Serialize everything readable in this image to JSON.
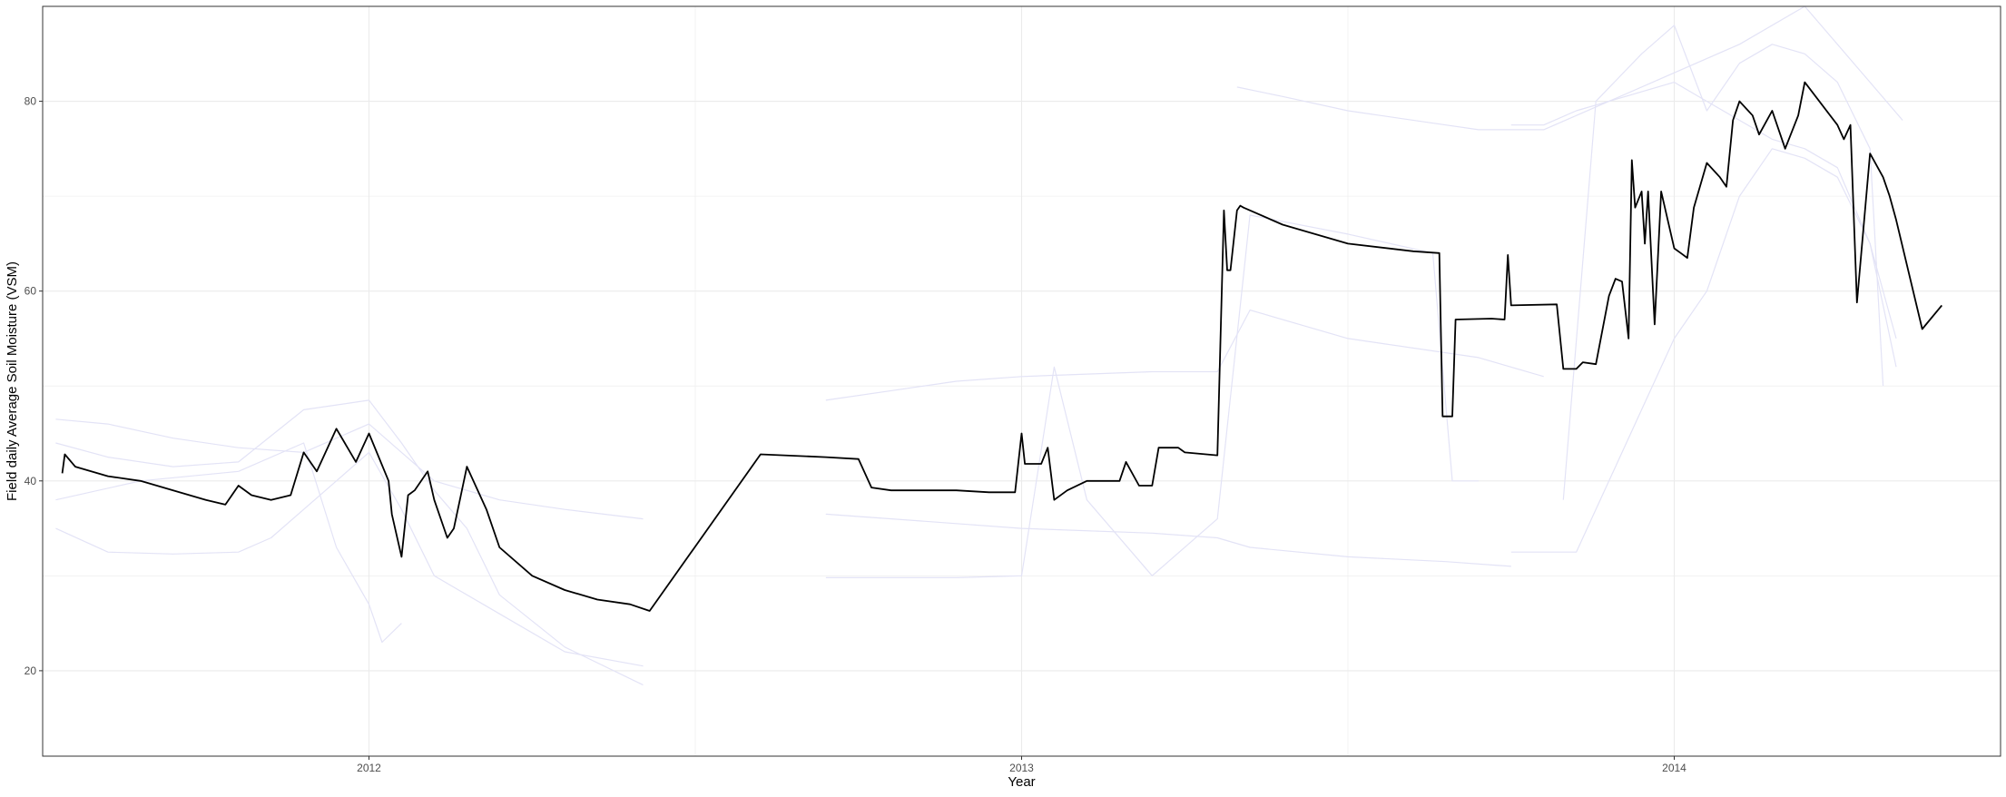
{
  "chart_data": {
    "type": "line",
    "title": "",
    "xlabel": "Year",
    "ylabel": "Field daily Average Soil Moisture (VSM)",
    "xlim": [
      2011.5,
      2014.5
    ],
    "ylim": [
      11,
      90
    ],
    "x_ticks": [
      2012,
      2013,
      2014
    ],
    "x_tick_labels": [
      "2012",
      "2013",
      "2014"
    ],
    "y_ticks": [
      20,
      40,
      60,
      80
    ],
    "y_tick_labels": [
      "20",
      "40",
      "60",
      "80"
    ],
    "grid": true,
    "legend": "none",
    "colors": {
      "field_average": "#000000",
      "sensors": "#e3e3f6",
      "grid": "#ebebeb",
      "panel_border": "#333333"
    },
    "series": [
      {
        "role": "field_average",
        "x": [
          2011.53,
          2011.534,
          2011.55,
          2011.6,
          2011.65,
          2011.7,
          2011.75,
          2011.78,
          2011.8,
          2011.82,
          2011.85,
          2011.88,
          2011.9,
          2011.92,
          2011.95,
          2011.98,
          2012.0,
          2012.03,
          2012.035,
          2012.05,
          2012.06,
          2012.07,
          2012.09,
          2012.1,
          2012.12,
          2012.13,
          2012.15,
          2012.18,
          2012.2,
          2012.25,
          2012.3,
          2012.35,
          2012.4,
          2012.43,
          2012.6,
          2012.7,
          2012.75,
          2012.77,
          2012.8,
          2012.85,
          2012.9,
          2012.95,
          2012.99,
          2013.0,
          2013.005,
          2013.03,
          2013.04,
          2013.05,
          2013.07,
          2013.1,
          2013.15,
          2013.16,
          2013.18,
          2013.2,
          2013.21,
          2013.24,
          2013.25,
          2013.3,
          2013.31,
          2013.315,
          2013.32,
          2013.33,
          2013.335,
          2013.34,
          2013.4,
          2013.5,
          2013.6,
          2013.64,
          2013.645,
          2013.66,
          2013.665,
          2013.72,
          2013.74,
          2013.745,
          2013.75,
          2013.82,
          2013.83,
          2013.85,
          2013.86,
          2013.88,
          2013.9,
          2013.91,
          2013.92,
          2013.93,
          2013.935,
          2013.94,
          2013.95,
          2013.955,
          2013.96,
          2013.97,
          2013.98,
          2014.0,
          2014.01,
          2014.02,
          2014.03,
          2014.05,
          2014.07,
          2014.08,
          2014.09,
          2014.1,
          2014.12,
          2014.13,
          2014.15,
          2014.17,
          2014.19,
          2014.2,
          2014.25,
          2014.26,
          2014.27,
          2014.28,
          2014.3,
          2014.32,
          2014.33,
          2014.34,
          2014.38,
          2014.41
        ],
        "y": [
          40.8,
          42.8,
          41.5,
          40.5,
          40.0,
          39.0,
          38.0,
          37.5,
          39.5,
          38.5,
          38.0,
          38.5,
          43.0,
          41.0,
          45.5,
          42.0,
          45.0,
          40.0,
          36.5,
          32.0,
          38.5,
          39.0,
          41.0,
          38.0,
          34.0,
          35.0,
          41.5,
          37.0,
          33.0,
          30.0,
          28.5,
          27.5,
          27.0,
          26.3,
          42.8,
          42.5,
          42.3,
          39.3,
          39.0,
          39.0,
          39.0,
          38.8,
          38.8,
          45.0,
          41.8,
          41.8,
          43.5,
          38.0,
          39.0,
          40.0,
          40.0,
          42.0,
          39.5,
          39.5,
          43.5,
          43.5,
          43.0,
          42.7,
          68.5,
          62.2,
          62.2,
          68.5,
          69.0,
          68.8,
          67.0,
          65.0,
          64.2,
          64.0,
          46.8,
          46.8,
          57.0,
          57.1,
          57.0,
          63.8,
          58.5,
          58.6,
          51.8,
          51.8,
          52.5,
          52.3,
          59.5,
          61.3,
          61.0,
          55.0,
          73.8,
          68.8,
          70.5,
          65.0,
          70.5,
          56.5,
          70.5,
          64.5,
          64.0,
          63.5,
          68.8,
          73.5,
          72.0,
          71.0,
          78.0,
          80.0,
          78.5,
          76.5,
          79.0,
          75.0,
          78.5,
          82.0,
          77.5,
          76.0,
          77.5,
          58.8,
          74.5,
          72.0,
          70.0,
          67.5,
          56.0,
          58.5
        ]
      },
      {
        "role": "sensor",
        "x": [
          2011.52,
          2011.6,
          2011.7,
          2011.8,
          2011.9,
          2012.0,
          2012.05,
          2012.1,
          2012.2,
          2012.3,
          2012.42
        ],
        "y": [
          46.5,
          46.0,
          44.5,
          43.5,
          43.0,
          46.0,
          43.0,
          40.0,
          38.0,
          37.0,
          36.0
        ]
      },
      {
        "role": "sensor",
        "x": [
          2011.52,
          2011.6,
          2011.7,
          2011.8,
          2011.85,
          2011.95,
          2012.0,
          2012.05,
          2012.1,
          2012.2,
          2012.3,
          2012.42
        ],
        "y": [
          35.0,
          32.5,
          32.3,
          32.5,
          34.0,
          40.0,
          43.0,
          37.0,
          30.0,
          26.0,
          22.0,
          20.5
        ]
      },
      {
        "role": "sensor",
        "x": [
          2011.52,
          2011.6,
          2011.7,
          2011.8,
          2011.9,
          2012.0,
          2012.05,
          2012.1,
          2012.15,
          2012.2,
          2012.3,
          2012.42
        ],
        "y": [
          44.0,
          42.5,
          41.5,
          42.0,
          47.5,
          48.5,
          44.0,
          39.0,
          35.0,
          28.0,
          22.5,
          18.5
        ]
      },
      {
        "role": "sensor",
        "x": [
          2011.52,
          2011.65,
          2011.8,
          2011.9,
          2011.95,
          2012.0,
          2012.02,
          2012.05
        ],
        "y": [
          38.0,
          40.0,
          41.0,
          44.0,
          33.0,
          27.0,
          23.0,
          25.0
        ]
      },
      {
        "role": "sensor",
        "x": [
          2012.7,
          2012.9,
          2013.0,
          2013.2,
          2013.3,
          2013.35,
          2013.5,
          2013.65,
          2013.75
        ],
        "y": [
          36.5,
          35.5,
          35.0,
          34.5,
          34.0,
          33.0,
          32.0,
          31.5,
          31.0
        ]
      },
      {
        "role": "sensor",
        "x": [
          2012.7,
          2012.9,
          2013.0,
          2013.05,
          2013.1,
          2013.2,
          2013.3,
          2013.35,
          2013.5,
          2013.63,
          2013.66,
          2013.7
        ],
        "y": [
          29.8,
          29.8,
          30.0,
          52.0,
          38.0,
          30.0,
          36.0,
          68.0,
          66.0,
          64.0,
          40.0,
          40.0
        ]
      },
      {
        "role": "sensor",
        "x": [
          2012.7,
          2012.9,
          2013.0,
          2013.2,
          2013.3,
          2013.35,
          2013.5,
          2013.7,
          2013.8
        ],
        "y": [
          48.5,
          50.5,
          51.0,
          51.5,
          51.5,
          58.0,
          55.0,
          53.0,
          51.0
        ]
      },
      {
        "role": "sensor",
        "x": [
          2013.33,
          2013.4,
          2013.5,
          2013.65,
          2013.7,
          2013.8,
          2013.9,
          2014.0,
          2014.1,
          2014.2,
          2014.3,
          2014.35
        ],
        "y": [
          81.5,
          80.5,
          79.0,
          77.5,
          77.0,
          77.0,
          80.0,
          83.0,
          86.0,
          90.0,
          82.0,
          78.0
        ]
      },
      {
        "role": "sensor",
        "x": [
          2013.75,
          2013.8,
          2013.85,
          2013.9,
          2014.0,
          2014.05,
          2014.1,
          2014.15,
          2014.2,
          2014.25,
          2014.3,
          2014.34
        ],
        "y": [
          77.5,
          77.5,
          79.0,
          80.0,
          82.0,
          80.0,
          78.0,
          76.0,
          75.0,
          73.0,
          65.0,
          52.0
        ]
      },
      {
        "role": "sensor",
        "x": [
          2013.75,
          2013.85,
          2013.9,
          2014.0,
          2014.05,
          2014.1,
          2014.15,
          2014.2,
          2014.25,
          2014.3,
          2014.34
        ],
        "y": [
          32.5,
          32.5,
          40.0,
          55.0,
          60.0,
          70.0,
          75.0,
          74.0,
          72.0,
          65.0,
          55.0
        ]
      },
      {
        "role": "sensor",
        "x": [
          2013.83,
          2013.88,
          2013.95,
          2014.0,
          2014.05,
          2014.1,
          2014.15,
          2014.2,
          2014.25,
          2014.3,
          2014.32
        ],
        "y": [
          38.0,
          80.0,
          85.0,
          88.0,
          79.0,
          84.0,
          86.0,
          85.0,
          82.0,
          75.0,
          50.0
        ]
      }
    ]
  }
}
